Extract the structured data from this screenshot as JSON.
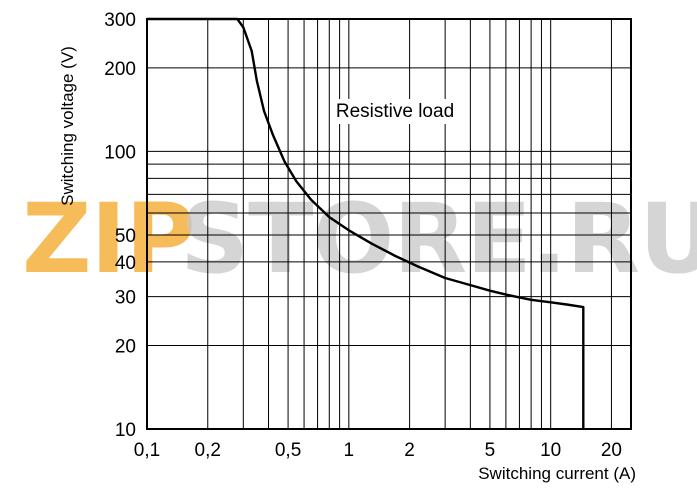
{
  "chart_data": {
    "type": "line",
    "scale": {
      "x": "log",
      "y": "log"
    },
    "xlim": [
      0.1,
      25
    ],
    "ylim": [
      10,
      300
    ],
    "grid": true,
    "xlabel": "Switching current (A)",
    "ylabel": "Switching voltage (V)",
    "x_ticks": [
      {
        "value": 0.1,
        "label": "0,1"
      },
      {
        "value": 0.2,
        "label": "0,2"
      },
      {
        "value": 0.5,
        "label": "0,5"
      },
      {
        "value": 1,
        "label": "1"
      },
      {
        "value": 2,
        "label": "2"
      },
      {
        "value": 5,
        "label": "5"
      },
      {
        "value": 10,
        "label": "10"
      },
      {
        "value": 20,
        "label": "20"
      }
    ],
    "y_ticks": [
      {
        "value": 10,
        "label": "10"
      },
      {
        "value": 20,
        "label": "20"
      },
      {
        "value": 30,
        "label": "30"
      },
      {
        "value": 40,
        "label": "40"
      },
      {
        "value": 50,
        "label": "50"
      },
      {
        "value": 100,
        "label": "100"
      },
      {
        "value": 200,
        "label": "200"
      },
      {
        "value": 300,
        "label": "300"
      }
    ],
    "x_grid": [
      0.1,
      0.2,
      0.3,
      0.4,
      0.5,
      0.6,
      0.7,
      0.8,
      0.9,
      1,
      2,
      3,
      4,
      5,
      6,
      7,
      8,
      9,
      10,
      20
    ],
    "y_grid": [
      10,
      20,
      30,
      40,
      50,
      60,
      70,
      80,
      90,
      100,
      200,
      300
    ],
    "annotation": "Resistive load",
    "series": [
      {
        "color": "#000000",
        "x": [
          0.1,
          0.28,
          0.3,
          0.33,
          0.35,
          0.38,
          0.42,
          0.48,
          0.55,
          0.65,
          0.8,
          1,
          1.3,
          1.7,
          2.2,
          3,
          4,
          5,
          6,
          7,
          8,
          10,
          12,
          14.5,
          14.5
        ],
        "y": [
          300,
          300,
          280,
          230,
          180,
          140,
          115,
          92,
          78,
          67,
          58,
          52,
          46.5,
          42,
          38.5,
          35,
          33,
          31.5,
          30.5,
          29.8,
          29.2,
          28.6,
          28.1,
          27.5,
          10
        ]
      }
    ]
  },
  "watermark": {
    "left": "ZIP",
    "right": "STORE.RU",
    "left_color": "#f5a623",
    "right_color": "#c8c8c8"
  }
}
